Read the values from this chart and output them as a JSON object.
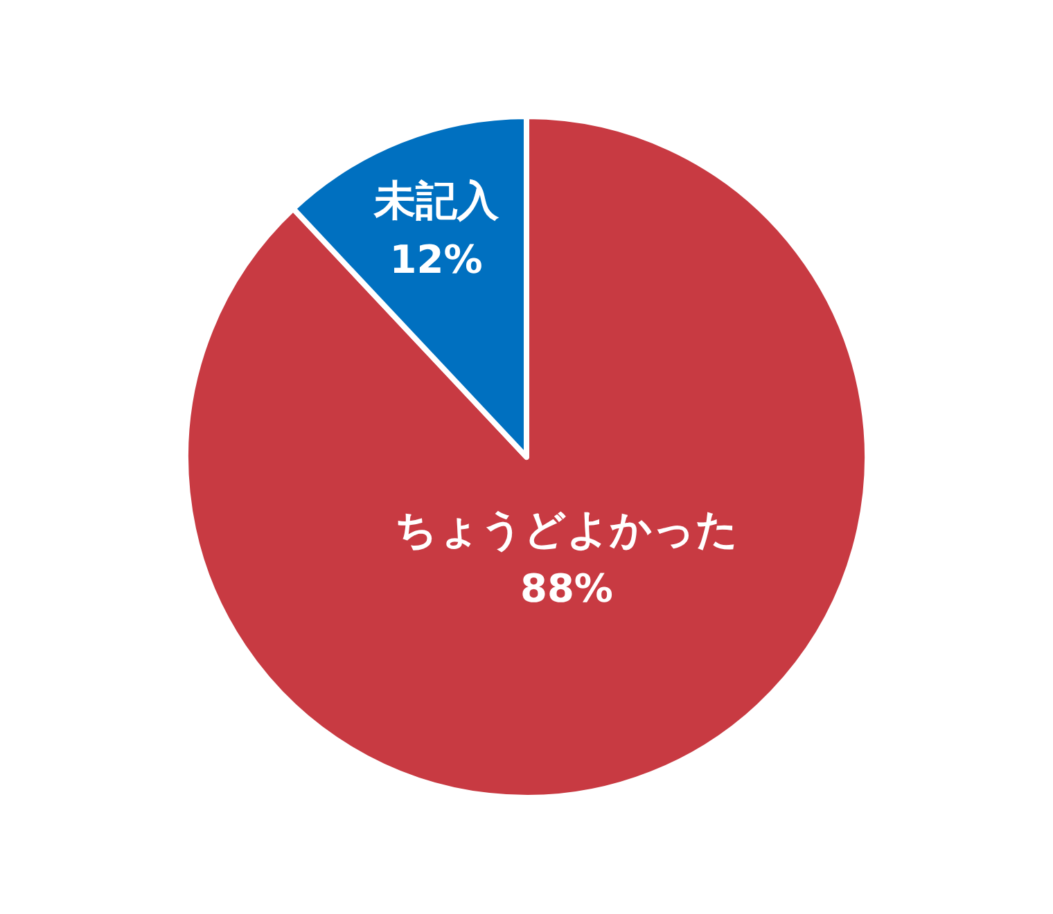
{
  "chart_data": {
    "type": "pie",
    "categories": [
      "ちょうどよかった",
      "未記入"
    ],
    "values": [
      88,
      12
    ],
    "value_labels": [
      "88%",
      "12%"
    ],
    "colors": [
      "#c83a42",
      "#0070c0"
    ]
  }
}
